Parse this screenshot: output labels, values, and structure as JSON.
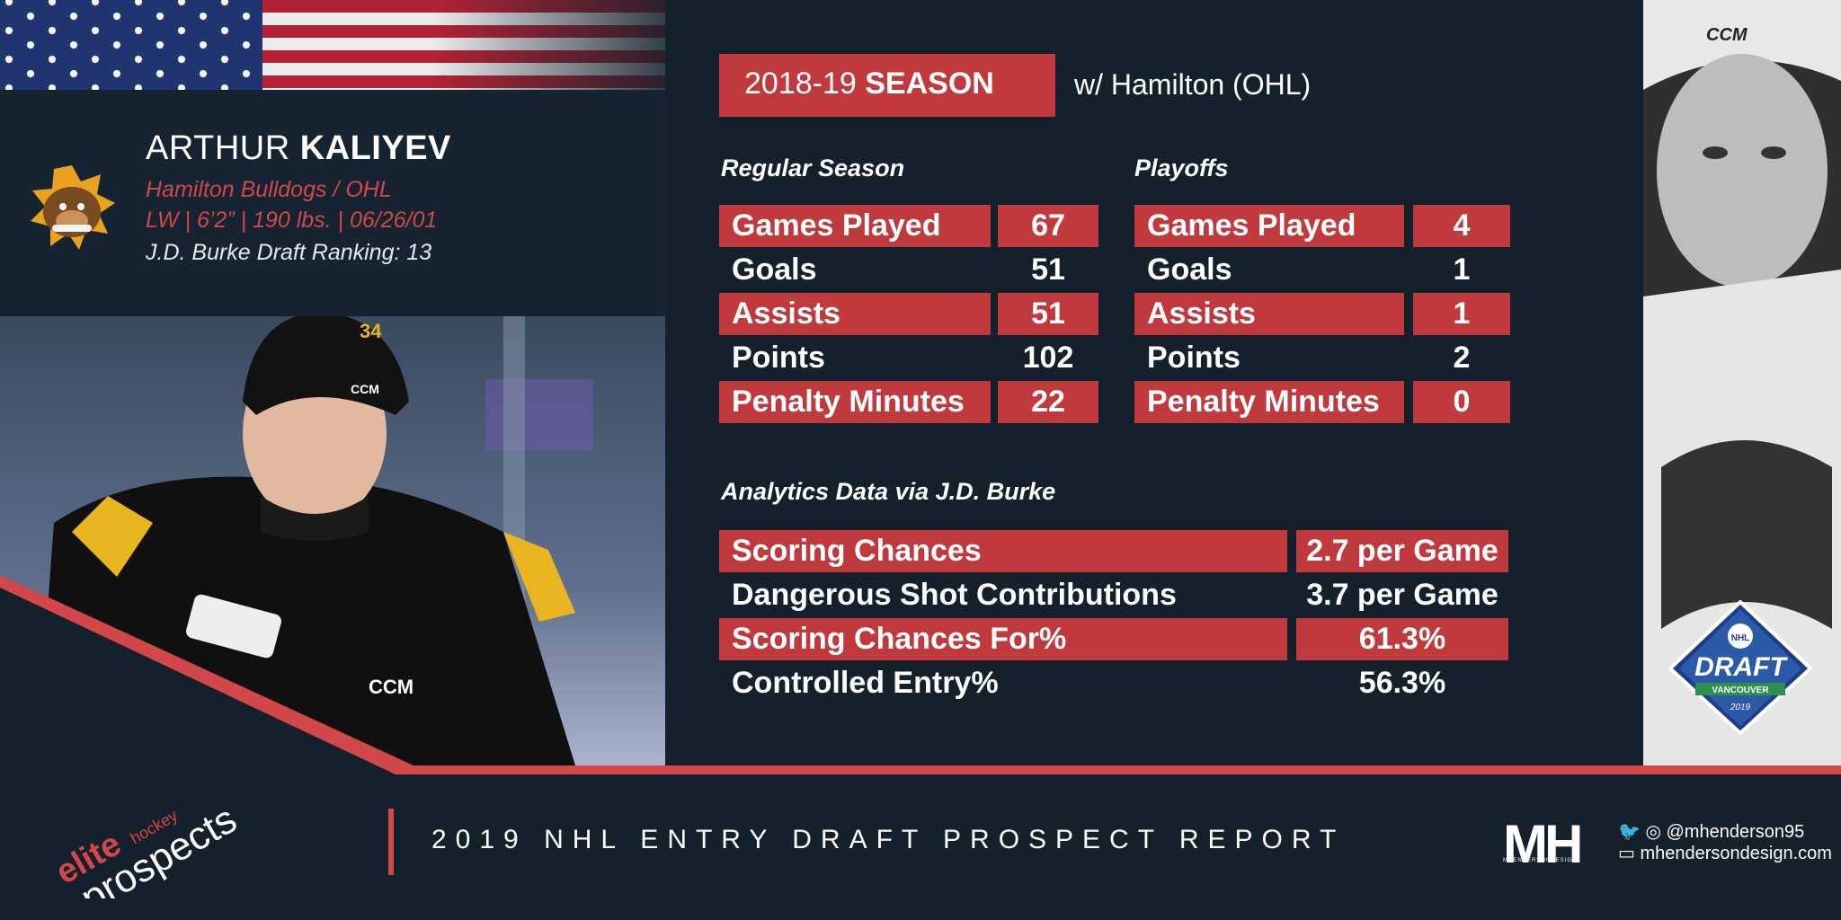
{
  "player": {
    "first_name": "ARTHUR",
    "last_name": "KALIYEV",
    "team": "Hamilton Bulldogs / OHL",
    "vitals": "LW | 6’2” | 190 lbs. | 06/26/01",
    "ranking": "J.D. Burke Draft Ranking: 13",
    "jersey_number": "34"
  },
  "season": {
    "year": "2018-19",
    "label": "SEASON",
    "team_with": "w/ Hamilton (OHL)"
  },
  "regular_season": {
    "heading": "Regular Season",
    "rows": [
      {
        "label": "Games Played",
        "value": "67"
      },
      {
        "label": "Goals",
        "value": "51"
      },
      {
        "label": "Assists",
        "value": "51"
      },
      {
        "label": "Points",
        "value": "102"
      },
      {
        "label": "Penalty Minutes",
        "value": "22"
      }
    ]
  },
  "playoffs": {
    "heading": "Playoffs",
    "rows": [
      {
        "label": "Games Played",
        "value": "4"
      },
      {
        "label": "Goals",
        "value": "1"
      },
      {
        "label": "Assists",
        "value": "1"
      },
      {
        "label": "Points",
        "value": "2"
      },
      {
        "label": "Penalty Minutes",
        "value": "0"
      }
    ]
  },
  "analytics": {
    "heading": "Analytics Data via J.D. Burke",
    "rows": [
      {
        "label": "Scoring Chances",
        "value": "2.7 per Game"
      },
      {
        "label": "Dangerous Shot Contributions",
        "value": "3.7 per Game"
      },
      {
        "label": "Scoring Chances For%",
        "value": "61.3%"
      },
      {
        "label": "Controlled Entry%",
        "value": "56.3%"
      }
    ]
  },
  "footer": {
    "report_title": "2019 NHL ENTRY DRAFT PROSPECT REPORT",
    "brand_mark": "MH",
    "brand_sub": "MHENDERSONDESIGN",
    "social_handle": "@mhenderson95",
    "website": "mhendersondesign.com",
    "ep_word1": "elite",
    "ep_word2": "hockey",
    "ep_word3": "prospects"
  },
  "draft_logo": {
    "word": "DRAFT",
    "city": "VANCOUVER",
    "year": "2019",
    "league": "NHL"
  },
  "colors": {
    "accent_red": "#c0393d",
    "background": "#14202c",
    "panel": "#162432"
  }
}
